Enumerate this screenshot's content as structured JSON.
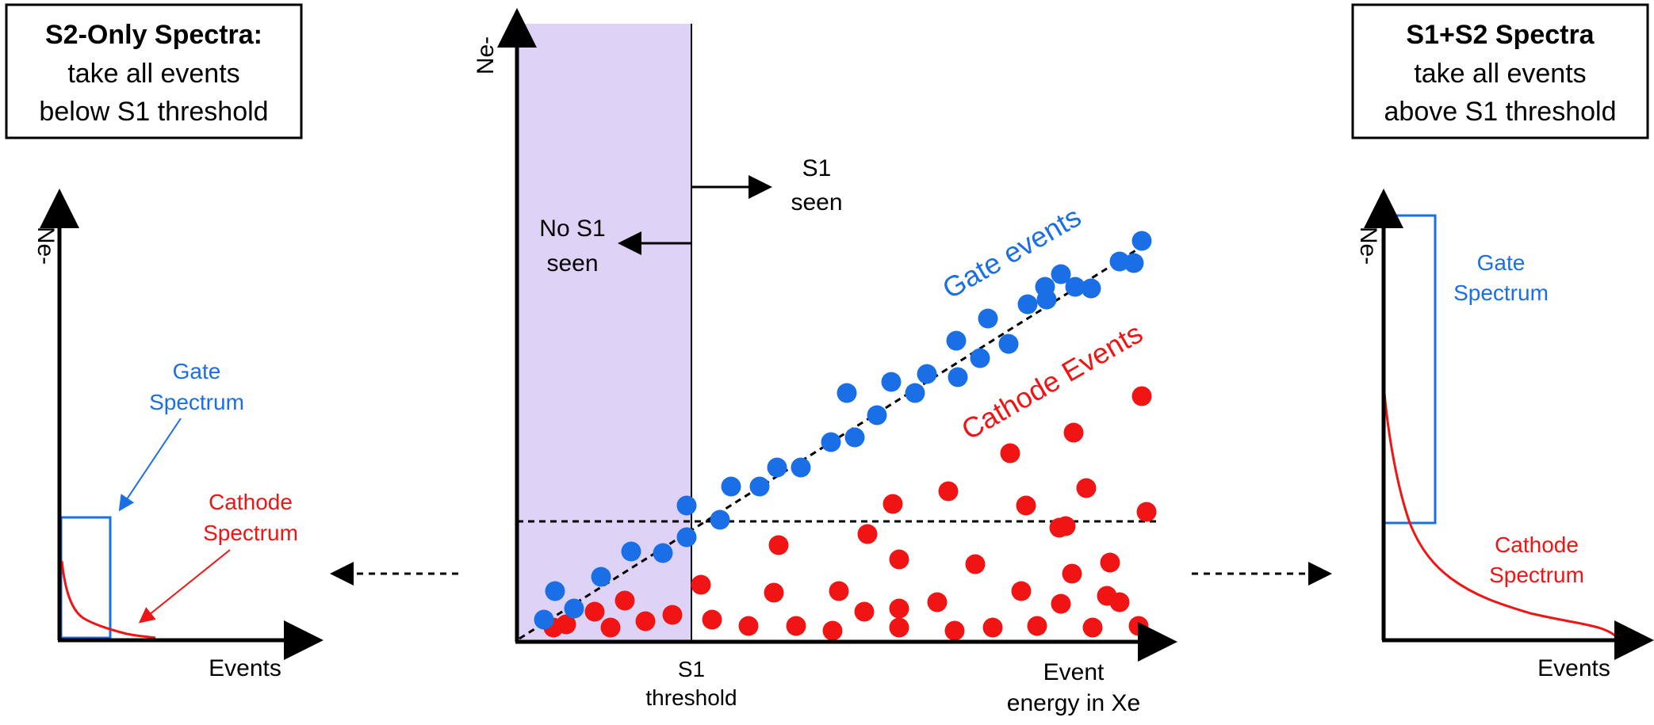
{
  "colors": {
    "gate": "#1a6fe6",
    "cathode": "#f01414",
    "shade": "#ded2f6",
    "ink": "#000000"
  },
  "left_box": {
    "title": "S2-Only Spectra:",
    "line1": "take all events",
    "line2": "below S1 threshold"
  },
  "right_box": {
    "title": "S1+S2 Spectra",
    "line1": "take all events",
    "line2": "above S1 threshold"
  },
  "center": {
    "y_label": "Ne-",
    "x_label_line1": "Event",
    "x_label_line2": "energy in Xe",
    "threshold_label_line1": "S1",
    "threshold_label_line2": "threshold",
    "s1_seen_line1": "S1",
    "s1_seen_line2": "seen",
    "no_s1_line1": "No S1",
    "no_s1_line2": "seen",
    "gate_label": "Gate events",
    "cathode_label": "Cathode Events"
  },
  "left_plot": {
    "y_label": "Ne-",
    "x_label": "Events",
    "gate_line1": "Gate",
    "gate_line2": "Spectrum",
    "cathode_line1": "Cathode",
    "cathode_line2": "Spectrum"
  },
  "right_plot": {
    "y_label": "Ne-",
    "x_label": "Events",
    "gate_line1": "Gate",
    "gate_line2": "Spectrum",
    "cathode_line1": "Cathode",
    "cathode_line2": "Spectrum"
  }
}
